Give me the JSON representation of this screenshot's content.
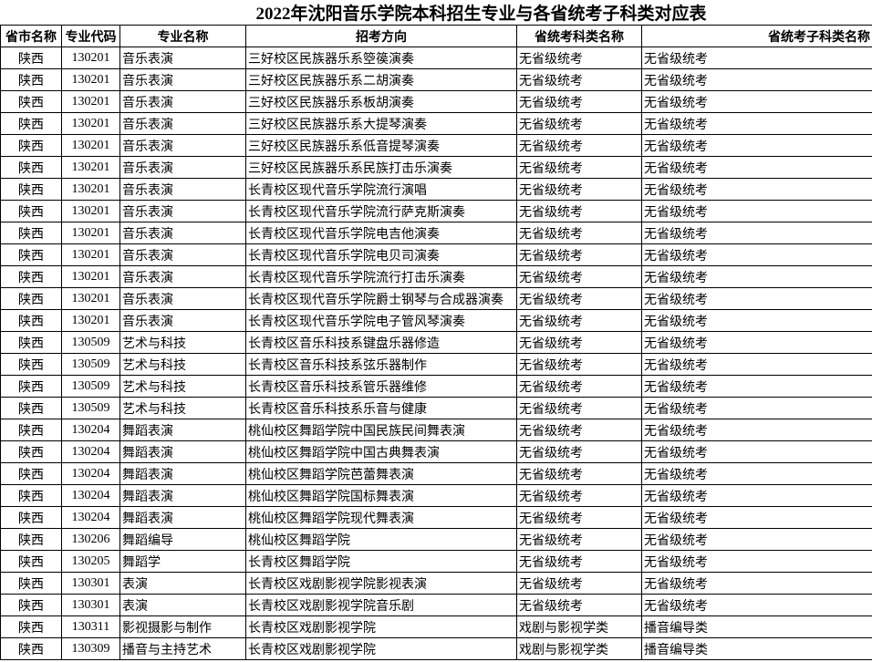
{
  "header": {
    "title": "2022年沈阳音乐学院本科招生专业与各省统考子科类对应表"
  },
  "table": {
    "columns": [
      "省市名称",
      "专业代码",
      "专业名称",
      "招考方向",
      "省统考科类名称",
      "省统考子科类名称"
    ],
    "rows": [
      [
        "陕西",
        "130201",
        "音乐表演",
        "三好校区民族器乐系箜篌演奏",
        "无省级统考",
        "无省级统考"
      ],
      [
        "陕西",
        "130201",
        "音乐表演",
        "三好校区民族器乐系二胡演奏",
        "无省级统考",
        "无省级统考"
      ],
      [
        "陕西",
        "130201",
        "音乐表演",
        "三好校区民族器乐系板胡演奏",
        "无省级统考",
        "无省级统考"
      ],
      [
        "陕西",
        "130201",
        "音乐表演",
        "三好校区民族器乐系大提琴演奏",
        "无省级统考",
        "无省级统考"
      ],
      [
        "陕西",
        "130201",
        "音乐表演",
        "三好校区民族器乐系低音提琴演奏",
        "无省级统考",
        "无省级统考"
      ],
      [
        "陕西",
        "130201",
        "音乐表演",
        "三好校区民族器乐系民族打击乐演奏",
        "无省级统考",
        "无省级统考"
      ],
      [
        "陕西",
        "130201",
        "音乐表演",
        "长青校区现代音乐学院流行演唱",
        "无省级统考",
        "无省级统考"
      ],
      [
        "陕西",
        "130201",
        "音乐表演",
        "长青校区现代音乐学院流行萨克斯演奏",
        "无省级统考",
        "无省级统考"
      ],
      [
        "陕西",
        "130201",
        "音乐表演",
        "长青校区现代音乐学院电吉他演奏",
        "无省级统考",
        "无省级统考"
      ],
      [
        "陕西",
        "130201",
        "音乐表演",
        "长青校区现代音乐学院电贝司演奏",
        "无省级统考",
        "无省级统考"
      ],
      [
        "陕西",
        "130201",
        "音乐表演",
        "长青校区现代音乐学院流行打击乐演奏",
        "无省级统考",
        "无省级统考"
      ],
      [
        "陕西",
        "130201",
        "音乐表演",
        "长青校区现代音乐学院爵士钢琴与合成器演奏",
        "无省级统考",
        "无省级统考"
      ],
      [
        "陕西",
        "130201",
        "音乐表演",
        "长青校区现代音乐学院电子管风琴演奏",
        "无省级统考",
        "无省级统考"
      ],
      [
        "陕西",
        "130509",
        "艺术与科技",
        "长青校区音乐科技系键盘乐器修造",
        "无省级统考",
        "无省级统考"
      ],
      [
        "陕西",
        "130509",
        "艺术与科技",
        "长青校区音乐科技系弦乐器制作",
        "无省级统考",
        "无省级统考"
      ],
      [
        "陕西",
        "130509",
        "艺术与科技",
        "长青校区音乐科技系管乐器维修",
        "无省级统考",
        "无省级统考"
      ],
      [
        "陕西",
        "130509",
        "艺术与科技",
        "长青校区音乐科技系乐音与健康",
        "无省级统考",
        "无省级统考"
      ],
      [
        "陕西",
        "130204",
        "舞蹈表演",
        "桃仙校区舞蹈学院中国民族民间舞表演",
        "无省级统考",
        "无省级统考"
      ],
      [
        "陕西",
        "130204",
        "舞蹈表演",
        "桃仙校区舞蹈学院中国古典舞表演",
        "无省级统考",
        "无省级统考"
      ],
      [
        "陕西",
        "130204",
        "舞蹈表演",
        "桃仙校区舞蹈学院芭蕾舞表演",
        "无省级统考",
        "无省级统考"
      ],
      [
        "陕西",
        "130204",
        "舞蹈表演",
        "桃仙校区舞蹈学院国标舞表演",
        "无省级统考",
        "无省级统考"
      ],
      [
        "陕西",
        "130204",
        "舞蹈表演",
        "桃仙校区舞蹈学院现代舞表演",
        "无省级统考",
        "无省级统考"
      ],
      [
        "陕西",
        "130206",
        "舞蹈编导",
        "桃仙校区舞蹈学院",
        "无省级统考",
        "无省级统考"
      ],
      [
        "陕西",
        "130205",
        "舞蹈学",
        "长青校区舞蹈学院",
        "无省级统考",
        "无省级统考"
      ],
      [
        "陕西",
        "130301",
        "表演",
        "长青校区戏剧影视学院影视表演",
        "无省级统考",
        "无省级统考"
      ],
      [
        "陕西",
        "130301",
        "表演",
        "长青校区戏剧影视学院音乐剧",
        "无省级统考",
        "无省级统考"
      ],
      [
        "陕西",
        "130311",
        "影视摄影与制作",
        "长青校区戏剧影视学院",
        "戏剧与影视学类",
        "播音编导类"
      ],
      [
        "陕西",
        "130309",
        "播音与主持艺术",
        "长青校区戏剧影视学院",
        "戏剧与影视学类",
        "播音编导类"
      ]
    ]
  }
}
